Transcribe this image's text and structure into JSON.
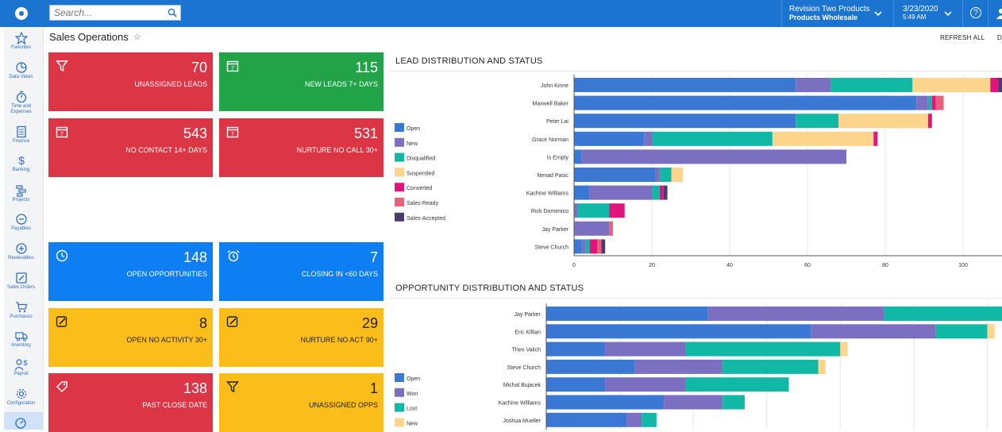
{
  "topbar": {
    "search_placeholder": "Search...",
    "company_line1": "Revision Two Products",
    "company_line2": "Products Wholesale",
    "date": "3/23/2020",
    "time": "5:49 AM",
    "help": "?"
  },
  "sidebar": {
    "items": [
      {
        "label": "Favorites",
        "icon": "star-icon"
      },
      {
        "label": "Data Views",
        "icon": "pie-chart-icon"
      },
      {
        "label": "Time and Expenses",
        "icon": "stopwatch-icon"
      },
      {
        "label": "Finance",
        "icon": "calculator-icon"
      },
      {
        "label": "Banking",
        "icon": "dollar-icon"
      },
      {
        "label": "Projects",
        "icon": "projects-icon"
      },
      {
        "label": "Payables",
        "icon": "minus-circle-icon"
      },
      {
        "label": "Receivables",
        "icon": "plus-circle-icon"
      },
      {
        "label": "Sales Orders",
        "icon": "pencil-square-icon"
      },
      {
        "label": "Purchases",
        "icon": "cart-icon"
      },
      {
        "label": "Inventory",
        "icon": "truck-icon"
      },
      {
        "label": "Payroll",
        "icon": "person-dollar-icon"
      },
      {
        "label": "Configuration",
        "icon": "gear-icon"
      }
    ]
  },
  "header": {
    "title": "Sales Operations",
    "refresh": "REFRESH ALL",
    "extra": "D"
  },
  "tiles": [
    {
      "value": "70",
      "label": "UNASSIGNED LEADS",
      "color": "#dc3545",
      "icon": "filter-icon"
    },
    {
      "value": "115",
      "label": "NEW LEADS 7+ DAYS",
      "color": "#22a347",
      "icon": "calendar-icon"
    },
    {
      "value": "543",
      "label": "NO CONTACT 14+ DAYS",
      "color": "#dc3545",
      "icon": "calendar-icon"
    },
    {
      "value": "531",
      "label": "NURTURE NO CALL 30+",
      "color": "#dc3545",
      "icon": "calendar-icon"
    },
    {
      "value": "148",
      "label": "OPEN OPPORTUNITIES",
      "color": "#0d7ff2",
      "icon": "clock-icon"
    },
    {
      "value": "7",
      "label": "CLOSING IN <60 DAYS",
      "color": "#0d7ff2",
      "icon": "alarm-clock-icon"
    },
    {
      "value": "8",
      "label": "OPEN NO ACTIVITY 30+",
      "color": "#fbbd19",
      "icon": "edit-icon"
    },
    {
      "value": "29",
      "label": "NURTURE NO ACT 90+",
      "color": "#fbbd19",
      "icon": "edit-icon"
    },
    {
      "value": "138",
      "label": "PAST CLOSE DATE",
      "color": "#dc3545",
      "icon": "tag-icon"
    },
    {
      "value": "1",
      "label": "UNASSIGNED OPPS",
      "color": "#fbbd19",
      "icon": "filter-icon"
    }
  ],
  "chart_data": [
    {
      "type": "bar",
      "orientation": "horizontal",
      "stacked": true,
      "title": "LEAD DISTRIBUTION AND STATUS",
      "categories": [
        "John Kinne",
        "Maxwell Baker",
        "Peter Lai",
        "Grace Norman",
        "Is Empty",
        "Nenad Pasic",
        "Kachine Williams",
        "Rick Domenico",
        "Jay Parker",
        "Steve Church"
      ],
      "series": [
        {
          "name": "Open",
          "color": "#3a78d4",
          "values": [
            57,
            88,
            57,
            18,
            2,
            21,
            4,
            0,
            0,
            2
          ]
        },
        {
          "name": "New",
          "color": "#7b6fc2",
          "values": [
            9,
            3,
            0,
            2,
            68,
            1,
            16,
            1,
            9,
            1
          ]
        },
        {
          "name": "Disqualified",
          "color": "#12b8a6",
          "values": [
            21,
            1,
            11,
            31,
            0,
            3,
            2,
            8,
            0,
            1
          ]
        },
        {
          "name": "Suspended",
          "color": "#fdd48b",
          "values": [
            20,
            0,
            23,
            26,
            0,
            3,
            0,
            0,
            0,
            0
          ]
        },
        {
          "name": "Converted",
          "color": "#e0147b",
          "values": [
            2,
            1,
            1,
            1,
            0,
            0,
            1,
            4,
            0,
            2
          ]
        },
        {
          "name": "Sales-Ready",
          "color": "#e8607a",
          "values": [
            0,
            2,
            0,
            0,
            0,
            0,
            0,
            0,
            1,
            1
          ]
        },
        {
          "name": "Sales-Accepted",
          "color": "#4a3c6e",
          "values": [
            1,
            0,
            0,
            0,
            0,
            0,
            1,
            0,
            0,
            1
          ]
        }
      ],
      "xlim": [
        0,
        110
      ],
      "xticks": [
        0,
        20,
        40,
        60,
        80,
        100
      ],
      "grid": true,
      "legend": "left"
    },
    {
      "type": "bar",
      "orientation": "horizontal",
      "stacked": true,
      "title": "OPPORTUNITY DISTRIBUTION AND STATUS",
      "categories": [
        "Jay Parker",
        "Eric Killian",
        "Theo Valich",
        "Steve Church",
        "Michal Bujacek",
        "Kachine Williams",
        "Joshua Mueller"
      ],
      "series": [
        {
          "name": "Open",
          "color": "#3a78d4",
          "values": [
            11,
            18,
            4,
            6,
            4,
            8,
            5.5
          ]
        },
        {
          "name": "Won",
          "color": "#7b6fc2",
          "values": [
            12,
            8.5,
            5.5,
            6,
            5.5,
            4,
            1
          ]
        },
        {
          "name": "Lost",
          "color": "#12b8a6",
          "values": [
            8,
            3.5,
            10.5,
            6.5,
            7,
            1.5,
            1
          ]
        },
        {
          "name": "New",
          "color": "#fdd48b",
          "values": [
            0,
            0.5,
            0.5,
            0.5,
            0,
            0,
            0
          ]
        }
      ],
      "xlim": [
        0,
        31
      ],
      "grid": true,
      "legend": "left"
    }
  ]
}
